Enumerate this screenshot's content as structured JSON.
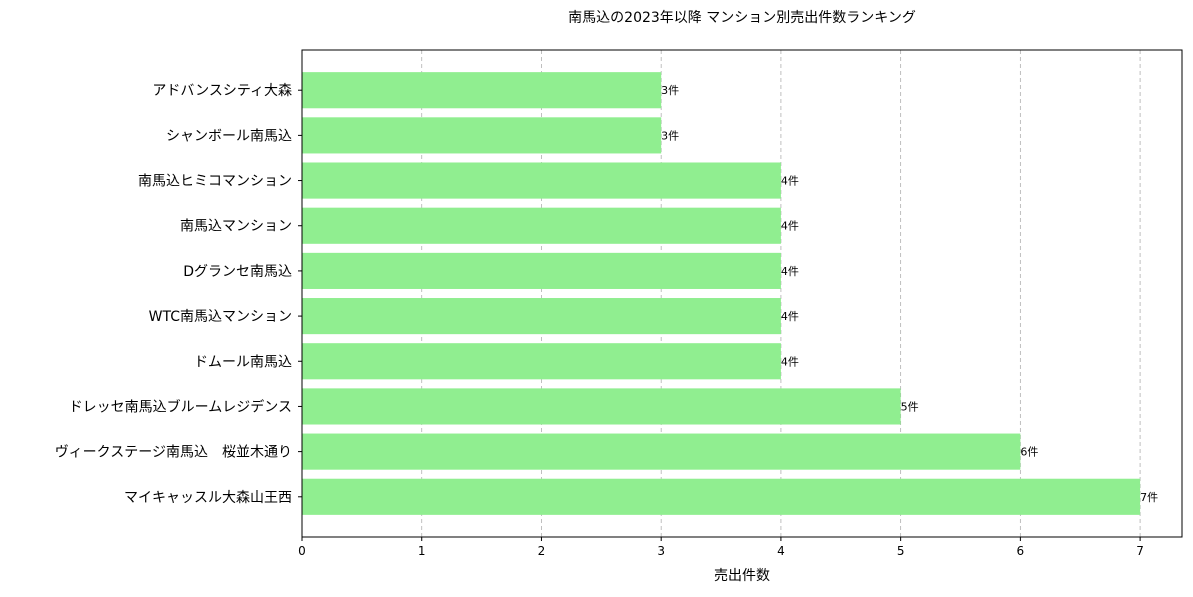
{
  "chart_data": {
    "type": "bar",
    "orientation": "horizontal",
    "title": "南馬込の2023年以降 マンション別売出件数ランキング",
    "xlabel": "売出件数",
    "ylabel": "",
    "xlim": [
      0,
      7.35
    ],
    "xticks": [
      "0",
      "1",
      "2",
      "3",
      "4",
      "5",
      "6",
      "7"
    ],
    "grid": "x-dashed",
    "bar_color": "#90ee90",
    "value_suffix": "件",
    "categories": [
      "マイキャッスル大森山王西",
      "ヴィークステージ南馬込　桜並木通り",
      "ドレッセ南馬込ブルームレジデンス",
      "ドムール南馬込",
      "WTC南馬込マンション",
      "Dグランセ南馬込",
      "南馬込マンション",
      "南馬込ヒミコマンション",
      "シャンボール南馬込",
      "アドバンスシティ大森"
    ],
    "values": [
      7,
      6,
      5,
      4,
      4,
      4,
      4,
      4,
      3,
      3
    ],
    "data_labels": [
      "7件",
      "6件",
      "5件",
      "4件",
      "4件",
      "4件",
      "4件",
      "4件",
      "3件",
      "3件"
    ]
  }
}
